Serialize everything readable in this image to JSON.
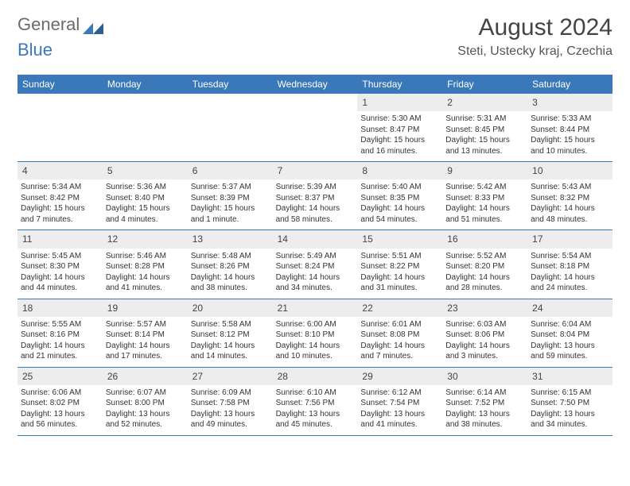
{
  "logo": {
    "text1": "General",
    "text2": "Blue"
  },
  "title": "August 2024",
  "location": "Steti, Ustecky kraj, Czechia",
  "colors": {
    "header_bg": "#3a78b9",
    "header_text": "#ffffff",
    "daynum_bg": "#ededed",
    "row_border": "#3a78b9",
    "body_text": "#333333",
    "title_text": "#444444"
  },
  "weekdays": [
    "Sunday",
    "Monday",
    "Tuesday",
    "Wednesday",
    "Thursday",
    "Friday",
    "Saturday"
  ],
  "weeks": [
    [
      {
        "n": "",
        "sr": "",
        "ss": "",
        "dl": ""
      },
      {
        "n": "",
        "sr": "",
        "ss": "",
        "dl": ""
      },
      {
        "n": "",
        "sr": "",
        "ss": "",
        "dl": ""
      },
      {
        "n": "",
        "sr": "",
        "ss": "",
        "dl": ""
      },
      {
        "n": "1",
        "sr": "Sunrise: 5:30 AM",
        "ss": "Sunset: 8:47 PM",
        "dl": "Daylight: 15 hours and 16 minutes."
      },
      {
        "n": "2",
        "sr": "Sunrise: 5:31 AM",
        "ss": "Sunset: 8:45 PM",
        "dl": "Daylight: 15 hours and 13 minutes."
      },
      {
        "n": "3",
        "sr": "Sunrise: 5:33 AM",
        "ss": "Sunset: 8:44 PM",
        "dl": "Daylight: 15 hours and 10 minutes."
      }
    ],
    [
      {
        "n": "4",
        "sr": "Sunrise: 5:34 AM",
        "ss": "Sunset: 8:42 PM",
        "dl": "Daylight: 15 hours and 7 minutes."
      },
      {
        "n": "5",
        "sr": "Sunrise: 5:36 AM",
        "ss": "Sunset: 8:40 PM",
        "dl": "Daylight: 15 hours and 4 minutes."
      },
      {
        "n": "6",
        "sr": "Sunrise: 5:37 AM",
        "ss": "Sunset: 8:39 PM",
        "dl": "Daylight: 15 hours and 1 minute."
      },
      {
        "n": "7",
        "sr": "Sunrise: 5:39 AM",
        "ss": "Sunset: 8:37 PM",
        "dl": "Daylight: 14 hours and 58 minutes."
      },
      {
        "n": "8",
        "sr": "Sunrise: 5:40 AM",
        "ss": "Sunset: 8:35 PM",
        "dl": "Daylight: 14 hours and 54 minutes."
      },
      {
        "n": "9",
        "sr": "Sunrise: 5:42 AM",
        "ss": "Sunset: 8:33 PM",
        "dl": "Daylight: 14 hours and 51 minutes."
      },
      {
        "n": "10",
        "sr": "Sunrise: 5:43 AM",
        "ss": "Sunset: 8:32 PM",
        "dl": "Daylight: 14 hours and 48 minutes."
      }
    ],
    [
      {
        "n": "11",
        "sr": "Sunrise: 5:45 AM",
        "ss": "Sunset: 8:30 PM",
        "dl": "Daylight: 14 hours and 44 minutes."
      },
      {
        "n": "12",
        "sr": "Sunrise: 5:46 AM",
        "ss": "Sunset: 8:28 PM",
        "dl": "Daylight: 14 hours and 41 minutes."
      },
      {
        "n": "13",
        "sr": "Sunrise: 5:48 AM",
        "ss": "Sunset: 8:26 PM",
        "dl": "Daylight: 14 hours and 38 minutes."
      },
      {
        "n": "14",
        "sr": "Sunrise: 5:49 AM",
        "ss": "Sunset: 8:24 PM",
        "dl": "Daylight: 14 hours and 34 minutes."
      },
      {
        "n": "15",
        "sr": "Sunrise: 5:51 AM",
        "ss": "Sunset: 8:22 PM",
        "dl": "Daylight: 14 hours and 31 minutes."
      },
      {
        "n": "16",
        "sr": "Sunrise: 5:52 AM",
        "ss": "Sunset: 8:20 PM",
        "dl": "Daylight: 14 hours and 28 minutes."
      },
      {
        "n": "17",
        "sr": "Sunrise: 5:54 AM",
        "ss": "Sunset: 8:18 PM",
        "dl": "Daylight: 14 hours and 24 minutes."
      }
    ],
    [
      {
        "n": "18",
        "sr": "Sunrise: 5:55 AM",
        "ss": "Sunset: 8:16 PM",
        "dl": "Daylight: 14 hours and 21 minutes."
      },
      {
        "n": "19",
        "sr": "Sunrise: 5:57 AM",
        "ss": "Sunset: 8:14 PM",
        "dl": "Daylight: 14 hours and 17 minutes."
      },
      {
        "n": "20",
        "sr": "Sunrise: 5:58 AM",
        "ss": "Sunset: 8:12 PM",
        "dl": "Daylight: 14 hours and 14 minutes."
      },
      {
        "n": "21",
        "sr": "Sunrise: 6:00 AM",
        "ss": "Sunset: 8:10 PM",
        "dl": "Daylight: 14 hours and 10 minutes."
      },
      {
        "n": "22",
        "sr": "Sunrise: 6:01 AM",
        "ss": "Sunset: 8:08 PM",
        "dl": "Daylight: 14 hours and 7 minutes."
      },
      {
        "n": "23",
        "sr": "Sunrise: 6:03 AM",
        "ss": "Sunset: 8:06 PM",
        "dl": "Daylight: 14 hours and 3 minutes."
      },
      {
        "n": "24",
        "sr": "Sunrise: 6:04 AM",
        "ss": "Sunset: 8:04 PM",
        "dl": "Daylight: 13 hours and 59 minutes."
      }
    ],
    [
      {
        "n": "25",
        "sr": "Sunrise: 6:06 AM",
        "ss": "Sunset: 8:02 PM",
        "dl": "Daylight: 13 hours and 56 minutes."
      },
      {
        "n": "26",
        "sr": "Sunrise: 6:07 AM",
        "ss": "Sunset: 8:00 PM",
        "dl": "Daylight: 13 hours and 52 minutes."
      },
      {
        "n": "27",
        "sr": "Sunrise: 6:09 AM",
        "ss": "Sunset: 7:58 PM",
        "dl": "Daylight: 13 hours and 49 minutes."
      },
      {
        "n": "28",
        "sr": "Sunrise: 6:10 AM",
        "ss": "Sunset: 7:56 PM",
        "dl": "Daylight: 13 hours and 45 minutes."
      },
      {
        "n": "29",
        "sr": "Sunrise: 6:12 AM",
        "ss": "Sunset: 7:54 PM",
        "dl": "Daylight: 13 hours and 41 minutes."
      },
      {
        "n": "30",
        "sr": "Sunrise: 6:14 AM",
        "ss": "Sunset: 7:52 PM",
        "dl": "Daylight: 13 hours and 38 minutes."
      },
      {
        "n": "31",
        "sr": "Sunrise: 6:15 AM",
        "ss": "Sunset: 7:50 PM",
        "dl": "Daylight: 13 hours and 34 minutes."
      }
    ]
  ]
}
